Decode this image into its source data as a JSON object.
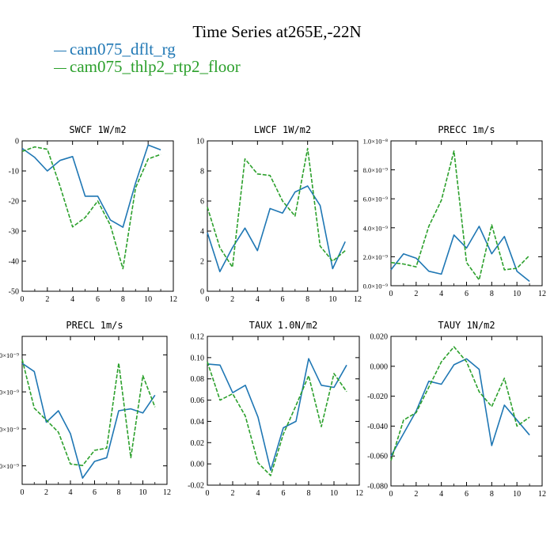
{
  "page": {
    "title": "Time Series at265E,-22N"
  },
  "legend": [
    {
      "label": "cam075_dflt_rg",
      "color": "#1f77b4",
      "dash": "solid"
    },
    {
      "label": "cam075_thlp2_rtp2_floor",
      "color": "#2ca02c",
      "dash": "dashed"
    }
  ],
  "chart_data": [
    {
      "type": "line",
      "title": "SWCF   1W/m2",
      "x": [
        0,
        1,
        2,
        3,
        4,
        5,
        6,
        7,
        8,
        9,
        10,
        11
      ],
      "xlim": [
        0,
        12
      ],
      "ylim": [
        -50,
        0
      ],
      "xticks": [
        0,
        2,
        4,
        6,
        8,
        10,
        12
      ],
      "yticks": [
        -50,
        -40,
        -30,
        -20,
        -10,
        0
      ],
      "ytick_labels": [
        "-50",
        "-40",
        "-30",
        "-20",
        "-10",
        "0"
      ],
      "series": [
        {
          "name": "cam075_dflt_rg",
          "values": [
            -2.5,
            -5.5,
            -10,
            -6.5,
            -5.2,
            -18.4,
            -18.4,
            -26.3,
            -28.7,
            -14,
            -1.4,
            -3
          ]
        },
        {
          "name": "cam075_thlp2_rtp2_floor",
          "values": [
            -3.5,
            -2,
            -2.8,
            -15,
            -28.6,
            -25.5,
            -20,
            -28,
            -42.5,
            -15.6,
            -6,
            -4.5
          ]
        }
      ]
    },
    {
      "type": "line",
      "title": "LWCF   1W/m2",
      "x": [
        0,
        1,
        2,
        3,
        4,
        5,
        6,
        7,
        8,
        9,
        10,
        11
      ],
      "xlim": [
        0,
        12
      ],
      "ylim": [
        0,
        10
      ],
      "xticks": [
        0,
        2,
        4,
        6,
        8,
        10,
        12
      ],
      "yticks": [
        0,
        2,
        4,
        6,
        8,
        10
      ],
      "ytick_labels": [
        "0",
        "2",
        "4",
        "6",
        "8",
        "10"
      ],
      "series": [
        {
          "name": "cam075_dflt_rg",
          "values": [
            3.9,
            1.3,
            2.9,
            4.2,
            2.7,
            5.5,
            5.2,
            6.6,
            7.0,
            5.7,
            1.5,
            3.3
          ]
        },
        {
          "name": "cam075_thlp2_rtp2_floor",
          "values": [
            5.6,
            2.9,
            1.6,
            8.8,
            7.8,
            7.7,
            6.0,
            5.0,
            9.5,
            3.0,
            2.0,
            2.7
          ]
        }
      ]
    },
    {
      "type": "line",
      "title": "PRECC   1m/s",
      "x": [
        0,
        1,
        2,
        3,
        4,
        5,
        6,
        7,
        8,
        9,
        10,
        11
      ],
      "xlim": [
        0,
        12
      ],
      "ylim": [
        0,
        1e-08
      ],
      "xticks": [
        0,
        2,
        4,
        6,
        8,
        10,
        12
      ],
      "yticks": [
        0,
        2e-09,
        4e-09,
        6e-09,
        8e-09,
        1e-08
      ],
      "ytick_labels": [
        "0.0×10⁻⁹",
        "2.0×10⁻⁹",
        "4.0×10⁻⁹",
        "6.0×10⁻⁹",
        "8.0×10⁻⁹",
        "1.0×10⁻⁸"
      ],
      "series": [
        {
          "name": "cam075_dflt_rg",
          "values": [
            1.1e-09,
            2.2e-09,
            1.9e-09,
            1e-09,
            8e-10,
            3.5e-09,
            2.6e-09,
            4.1e-09,
            2.2e-09,
            3.4e-09,
            1e-09,
            3e-10
          ]
        },
        {
          "name": "cam075_thlp2_rtp2_floor",
          "values": [
            1.6e-09,
            1.5e-09,
            1.3e-09,
            4.1e-09,
            5.9e-09,
            9.3e-09,
            1.6e-09,
            4e-10,
            4.2e-09,
            1.1e-09,
            1.2e-09,
            2.1e-09
          ]
        }
      ]
    },
    {
      "type": "line",
      "title": "PRECL   1m/s",
      "x": [
        0,
        1,
        2,
        3,
        4,
        5,
        6,
        7,
        8,
        9,
        10,
        11
      ],
      "xlim": [
        0,
        12
      ],
      "ylim": [
        0,
        4
      ],
      "xticks": [
        0,
        2,
        4,
        6,
        8,
        10,
        12
      ],
      "yticks": [
        0.5,
        1.5,
        2.5,
        3.5
      ],
      "ytick_labels": [
        "0×10⁻⁹",
        "0×10⁻⁹",
        "0×10⁻⁹",
        "0×10⁻⁹"
      ],
      "series": [
        {
          "name": "cam075_dflt_rg",
          "values": [
            3.27,
            3.05,
            1.68,
            1.99,
            1.37,
            0.17,
            0.62,
            0.72,
            1.99,
            2.04,
            1.93,
            2.41
          ]
        },
        {
          "name": "cam075_thlp2_rtp2_floor",
          "values": [
            3.38,
            2.06,
            1.74,
            1.41,
            0.55,
            0.51,
            0.92,
            0.98,
            3.28,
            0.72,
            2.94,
            2.09
          ]
        }
      ]
    },
    {
      "type": "line",
      "title": "TAUX   1.0N/m2",
      "x": [
        0,
        1,
        2,
        3,
        4,
        5,
        6,
        7,
        8,
        9,
        10,
        11
      ],
      "xlim": [
        0,
        12
      ],
      "ylim": [
        -0.02,
        0.12
      ],
      "xticks": [
        0,
        2,
        4,
        6,
        8,
        10,
        12
      ],
      "yticks": [
        -0.02,
        0,
        0.02,
        0.04,
        0.06,
        0.08,
        0.1,
        0.12
      ],
      "ytick_labels": [
        "-0.02",
        "0.00",
        "0.02",
        "0.04",
        "0.06",
        "0.08",
        "0.10",
        "0.12"
      ],
      "series": [
        {
          "name": "cam075_dflt_rg",
          "values": [
            0.094,
            0.093,
            0.067,
            0.074,
            0.044,
            -0.006,
            0.034,
            0.04,
            0.099,
            0.074,
            0.072,
            0.093
          ]
        },
        {
          "name": "cam075_thlp2_rtp2_floor",
          "values": [
            0.096,
            0.06,
            0.066,
            0.045,
            0.001,
            -0.011,
            0.028,
            0.055,
            0.083,
            0.035,
            0.085,
            0.068
          ]
        }
      ]
    },
    {
      "type": "line",
      "title": "TAUY   1N/m2",
      "x": [
        0,
        1,
        2,
        3,
        4,
        5,
        6,
        7,
        8,
        9,
        10,
        11
      ],
      "xlim": [
        0,
        12
      ],
      "ylim": [
        -0.08,
        0.02
      ],
      "xticks": [
        0,
        2,
        4,
        6,
        8,
        10,
        12
      ],
      "yticks": [
        -0.08,
        -0.06,
        -0.04,
        -0.02,
        0,
        0.02
      ],
      "ytick_labels": [
        "-0.080",
        "-0.060",
        "-0.040",
        "-0.020",
        "0.000",
        "0.020"
      ],
      "series": [
        {
          "name": "cam075_dflt_rg",
          "values": [
            -0.06,
            -0.045,
            -0.03,
            -0.01,
            -0.012,
            0.001,
            0.005,
            -0.002,
            -0.053,
            -0.026,
            -0.036,
            -0.046
          ]
        },
        {
          "name": "cam075_thlp2_rtp2_floor",
          "values": [
            -0.063,
            -0.036,
            -0.031,
            -0.014,
            0.003,
            0.013,
            0.003,
            -0.017,
            -0.027,
            -0.008,
            -0.04,
            -0.034
          ]
        }
      ]
    }
  ]
}
